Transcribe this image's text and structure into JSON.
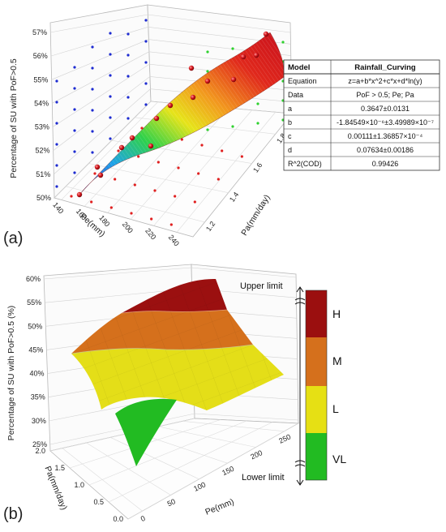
{
  "panel_a": {
    "label": "(a)",
    "ylabel": "Percentage of SU with PoF>0.5",
    "xlabel": "Pe(mm)",
    "zlabel": "Pa(mm/day)",
    "yticks": [
      "50%",
      "51%",
      "52%",
      "53%",
      "54%",
      "55%",
      "56%",
      "57%"
    ],
    "xticks": [
      "140",
      "160",
      "180",
      "200",
      "220",
      "240"
    ],
    "zticks": [
      "1.2",
      "1.4",
      "1.6",
      "1.8"
    ],
    "table": {
      "head": [
        "Model",
        "Rainfall_Curving"
      ],
      "rows": [
        [
          "Equation",
          "z=a+b*x^2+c*x+d*ln(y)"
        ],
        [
          "Data",
          "PoF > 0.5;  Pe;  Pa"
        ],
        [
          "a",
          "0.3647±0.0131"
        ],
        [
          "b",
          "-1.84549×10⁻⁶±3.49989×10⁻⁷"
        ],
        [
          "c",
          "0.00111±1.36857×10⁻⁴"
        ],
        [
          "d",
          "0.07634±0.00186"
        ],
        [
          "R^2(COD)",
          "0.99426"
        ]
      ]
    }
  },
  "panel_b": {
    "label": "(b)",
    "ylabel": "Percentage of SU with PoF>0.5 (%)",
    "xlabel": "Pe(mm)",
    "zlabel": "Pa(mm/day)",
    "yticks": [
      "25%",
      "30%",
      "35%",
      "40%",
      "45%",
      "50%",
      "55%",
      "60%"
    ],
    "xticks": [
      "0",
      "50",
      "100",
      "150",
      "200",
      "250"
    ],
    "zticks": [
      "0.0",
      "0.5",
      "1.0",
      "1.5",
      "2.0"
    ],
    "upper_limit": "Upper limit",
    "lower_limit": "Lower limit",
    "classes": [
      "H",
      "M",
      "L",
      "VL"
    ],
    "class_colors": [
      "#9b0f0f",
      "#d5701c",
      "#e6e014",
      "#22bb22"
    ]
  },
  "chart_data": [
    {
      "type": "scatter",
      "title": "",
      "xlabel": "Pe(mm)",
      "ylabel": "Percentage of SU with PoF>0.5",
      "zlabel": "Pa(mm/day)",
      "xlim": [
        140,
        240
      ],
      "ylim": [
        0.5,
        0.57
      ],
      "zlim": [
        1.1,
        1.8
      ],
      "model": "z=a+b*x^2+c*x+d*ln(y)",
      "params": {
        "a": 0.3647,
        "b": -1.84549e-06,
        "c": 0.00111,
        "d": 0.07634
      },
      "r2": 0.99426,
      "series": [
        {
          "name": "",
          "points": [
            {
              "pe": 145,
              "pa": 1.1,
              "v": 0.503
            },
            {
              "pe": 160,
              "pa": 1.2,
              "v": 0.509
            },
            {
              "pe": 175,
              "pa": 1.3,
              "v": 0.516
            },
            {
              "pe": 190,
              "pa": 1.4,
              "v": 0.524
            },
            {
              "pe": 205,
              "pa": 1.5,
              "v": 0.532
            },
            {
              "pe": 220,
              "pa": 1.6,
              "v": 0.541
            },
            {
              "pe": 235,
              "pa": 1.7,
              "v": 0.552
            },
            {
              "pe": 240,
              "pa": 1.8,
              "v": 0.567
            }
          ]
        }
      ]
    },
    {
      "type": "area",
      "title": "",
      "xlabel": "Pe(mm)",
      "ylabel": "Percentage of SU with PoF>0.5 (%)",
      "zlabel": "Pa(mm/day)",
      "xlim": [
        0,
        250
      ],
      "ylim": [
        25,
        60
      ],
      "zlim": [
        0,
        2
      ],
      "classes": [
        "VL",
        "L",
        "M",
        "H"
      ],
      "class_thresholds": [
        35,
        45,
        52
      ]
    }
  ]
}
